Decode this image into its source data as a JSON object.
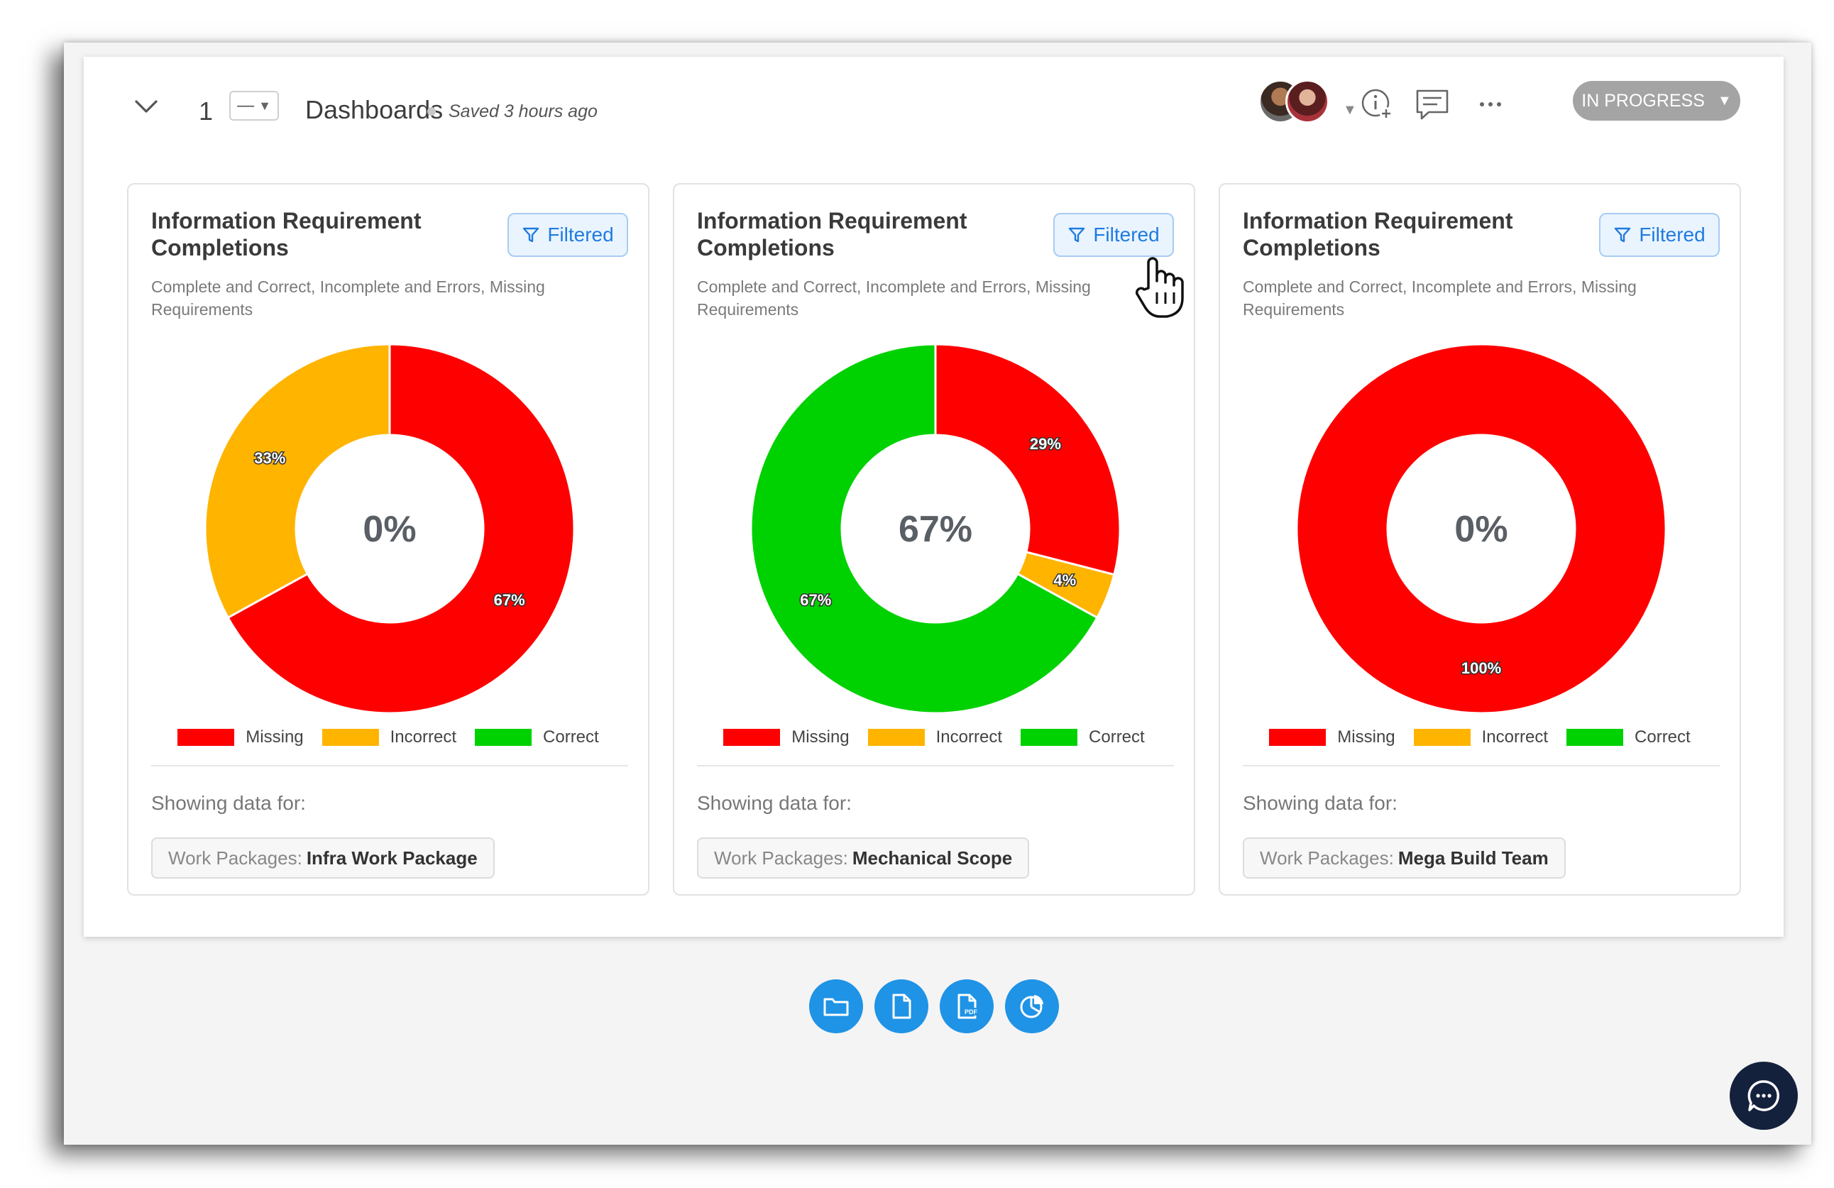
{
  "header": {
    "number": "1",
    "selector_value": "—",
    "title": "Dashboards",
    "saved": "Saved 3 hours ago",
    "status": "IN PROGRESS",
    "icons": [
      "collapse-chevron-icon",
      "info-add-icon",
      "comment-icon",
      "more-icon"
    ]
  },
  "colors": {
    "missing": "#ff0000",
    "incorrect": "#ffb400",
    "correct": "#00d100",
    "filtered_accent": "#1f7be0",
    "toolbar_blue": "#1f93e6",
    "chat_navy": "#14213d"
  },
  "legend": [
    "Missing",
    "Incorrect",
    "Correct"
  ],
  "cards": [
    {
      "title": "Information Requirement Completions",
      "filter_label": "Filtered",
      "subtitle": "Complete and Correct, Incomplete and Errors, Missing Requirements",
      "center": "0%",
      "showing_label": "Showing data for:",
      "tag_key": "Work Packages:",
      "tag_value": "Infra Work Package"
    },
    {
      "title": "Information Requirement Completions",
      "filter_label": "Filtered",
      "subtitle": "Complete and Correct, Incomplete and Errors, Missing Requirements",
      "center": "67%",
      "showing_label": "Showing data for:",
      "tag_key": "Work Packages:",
      "tag_value": "Mechanical Scope"
    },
    {
      "title": "Information Requirement Completions",
      "filter_label": "Filtered",
      "subtitle": "Complete and Correct, Incomplete and Errors, Missing Requirements",
      "center": "0%",
      "showing_label": "Showing data for:",
      "tag_key": "Work Packages:",
      "tag_value": "Mega Build Team"
    }
  ],
  "chart_data": [
    {
      "type": "pie",
      "title": "Information Requirement Completions",
      "categories": [
        "Missing",
        "Incorrect",
        "Correct"
      ],
      "values": [
        67,
        33,
        0
      ],
      "labels": [
        "67%",
        "33%",
        ""
      ],
      "center_label": "0%"
    },
    {
      "type": "pie",
      "title": "Information Requirement Completions",
      "categories": [
        "Missing",
        "Incorrect",
        "Correct"
      ],
      "values": [
        29,
        4,
        67
      ],
      "labels": [
        "29%",
        "4%",
        "67%"
      ],
      "center_label": "67%"
    },
    {
      "type": "pie",
      "title": "Information Requirement Completions",
      "categories": [
        "Missing",
        "Incorrect",
        "Correct"
      ],
      "values": [
        100,
        0,
        0
      ],
      "labels": [
        "100%",
        "",
        ""
      ],
      "center_label": "0%"
    }
  ],
  "toolbar": [
    "folder-icon",
    "document-icon",
    "pdf-icon",
    "pie-chart-icon"
  ]
}
